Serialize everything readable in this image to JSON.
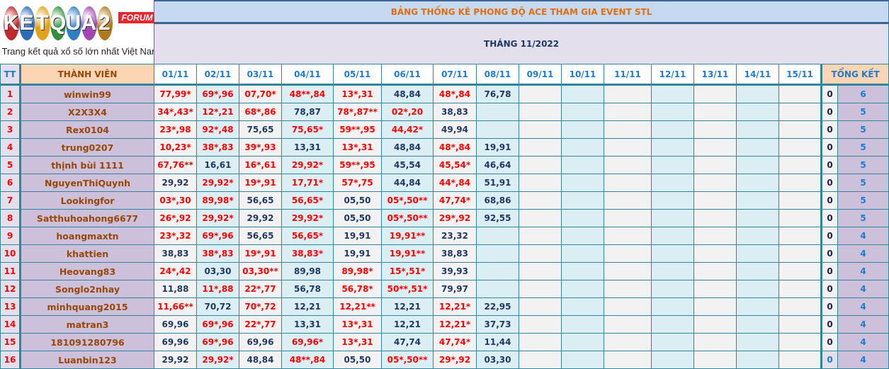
{
  "logo": {
    "letters": [
      "K",
      "E",
      "T",
      "Q",
      "U",
      "A",
      "2"
    ],
    "colors": [
      "#c0282c",
      "#2a6cb8",
      "#e2a21a",
      "#2f8f3a",
      "#2f7fc4",
      "#a346b4",
      "#b07a1c"
    ],
    "badge": "FORUM",
    "tagline": "Trang kết quả xổ số lớn nhất Việt Nam"
  },
  "header": {
    "title": "BẢNG THỐNG KÊ PHONG ĐỘ ACE THAM GIA EVENT STL",
    "subtitle": "THÁNG 11/2022"
  },
  "columns": {
    "tt": "TT",
    "member": "THÀNH VIÊN",
    "dates": [
      "01/11",
      "02/11",
      "03/11",
      "04/11",
      "05/11",
      "06/11",
      "07/11",
      "08/11",
      "09/11",
      "10/11",
      "11/11",
      "12/11",
      "13/11",
      "14/11",
      "15/11"
    ],
    "total": "TỔNG KẾT"
  },
  "colors": {
    "hit": "#ff0000",
    "normal": "#1f3864",
    "member": "#974706",
    "title": "#e46c0a"
  },
  "rows": [
    {
      "tt": "1",
      "name": "winwin99",
      "cells": [
        "77,99*",
        "69*,96",
        "07,70*",
        "48**,84",
        "13*,31",
        "48,84",
        "48*,84",
        "76,78",
        "",
        "",
        "",
        "",
        "",
        "",
        ""
      ],
      "zero": "0",
      "total": "6"
    },
    {
      "tt": "2",
      "name": "X2X3X4",
      "cells": [
        "34*,43*",
        "12*,21",
        "68*,86",
        "78,87",
        "78*,87**",
        "02*,20",
        "38,83",
        "",
        "",
        "",
        "",
        "",
        "",
        "",
        ""
      ],
      "zero": "0",
      "total": "5"
    },
    {
      "tt": "3",
      "name": "Rex0104",
      "cells": [
        "23*,98",
        "92*,48",
        "75,65",
        "75,65*",
        "59**,95",
        "44,42*",
        "49,94",
        "",
        "",
        "",
        "",
        "",
        "",
        "",
        ""
      ],
      "zero": "0",
      "total": "5"
    },
    {
      "tt": "4",
      "name": "trung0207",
      "cells": [
        "10,23*",
        "38*,83",
        "39*,93",
        "13,31",
        "13*,31",
        "48,84",
        "48*,84",
        "19,91",
        "",
        "",
        "",
        "",
        "",
        "",
        ""
      ],
      "zero": "0",
      "total": "5"
    },
    {
      "tt": "5",
      "name": "thịnh bùi 1111",
      "cells": [
        "67,76**",
        "16,61",
        "16*,61",
        "29,92*",
        "59**,95",
        "45,54",
        "45,54*",
        "46,64",
        "",
        "",
        "",
        "",
        "",
        "",
        ""
      ],
      "zero": "0",
      "total": "5"
    },
    {
      "tt": "6",
      "name": "NguyenThiQuynh",
      "cells": [
        "29,92",
        "29,92*",
        "19*,91",
        "17,71*",
        "57*,75",
        "44,84",
        "44*,84",
        "51,91",
        "",
        "",
        "",
        "",
        "",
        "",
        ""
      ],
      "zero": "0",
      "total": "5"
    },
    {
      "tt": "7",
      "name": "Lookingfor",
      "cells": [
        "03*,30",
        "89,98*",
        "56,65",
        "56,65*",
        "05,50",
        "05*,50**",
        "47,74*",
        "68,86",
        "",
        "",
        "",
        "",
        "",
        "",
        ""
      ],
      "zero": "0",
      "total": "5"
    },
    {
      "tt": "8",
      "name": "Satthuhoahong6677",
      "cells": [
        "26*,92",
        "29,92*",
        "29,92",
        "29,92*",
        "05,50",
        "05*,50**",
        "29*,92",
        "92,55",
        "",
        "",
        "",
        "",
        "",
        "",
        ""
      ],
      "zero": "0",
      "total": "5"
    },
    {
      "tt": "9",
      "name": "hoangmaxtn",
      "cells": [
        "23*,32",
        "69*,96",
        "56,65",
        "56,65*",
        "19,91",
        "19,91**",
        "23,32",
        "",
        "",
        "",
        "",
        "",
        "",
        "",
        ""
      ],
      "zero": "0",
      "total": "4"
    },
    {
      "tt": "10",
      "name": "khattien",
      "cells": [
        "38,83",
        "38*,83",
        "19*,91",
        "38,83*",
        "19,91",
        "19,91**",
        "38,83",
        "",
        "",
        "",
        "",
        "",
        "",
        "",
        ""
      ],
      "zero": "0",
      "total": "4"
    },
    {
      "tt": "11",
      "name": "Heovang83",
      "cells": [
        "24*,42",
        "03,30",
        "03,30**",
        "89,98",
        "89,98*",
        "15*,51*",
        "39,93",
        "",
        "",
        "",
        "",
        "",
        "",
        "",
        ""
      ],
      "zero": "0",
      "total": "4"
    },
    {
      "tt": "12",
      "name": "Songlo2nhay",
      "cells": [
        "11,88",
        "11*,88",
        "22*,77",
        "56,78",
        "56,78*",
        "50**,51*",
        "79,97",
        "",
        "",
        "",
        "",
        "",
        "",
        "",
        ""
      ],
      "zero": "0",
      "total": "4"
    },
    {
      "tt": "13",
      "name": "minhquang2015",
      "cells": [
        "11,66**",
        "70,72",
        "70*,72",
        "12,21",
        "12,21**",
        "12,21",
        "12,21*",
        "22,95",
        "",
        "",
        "",
        "",
        "",
        "",
        ""
      ],
      "zero": "0",
      "total": "4"
    },
    {
      "tt": "14",
      "name": "matran3",
      "cells": [
        "69,96",
        "69*,96",
        "22*,77",
        "13,31",
        "13*,31",
        "12,21",
        "12,21*",
        "37,73",
        "",
        "",
        "",
        "",
        "",
        "",
        ""
      ],
      "zero": "0",
      "total": "4"
    },
    {
      "tt": "15",
      "name": "181091280796",
      "cells": [
        "69,96",
        "69*,96",
        "69,96",
        "69,96*",
        "13*,31",
        "47,74",
        "47,74*",
        "11,44",
        "",
        "",
        "",
        "",
        "",
        "",
        ""
      ],
      "zero": "0",
      "total": "4"
    },
    {
      "tt": "16",
      "name": "Luanbin123",
      "cells": [
        "29,92",
        "29,92*",
        "48,84",
        "48**,84",
        "05,50",
        "05*,50**",
        "29*,92",
        "03,30",
        "",
        "",
        "",
        "",
        "",
        "",
        ""
      ],
      "zero": "0",
      "total": "4"
    }
  ]
}
